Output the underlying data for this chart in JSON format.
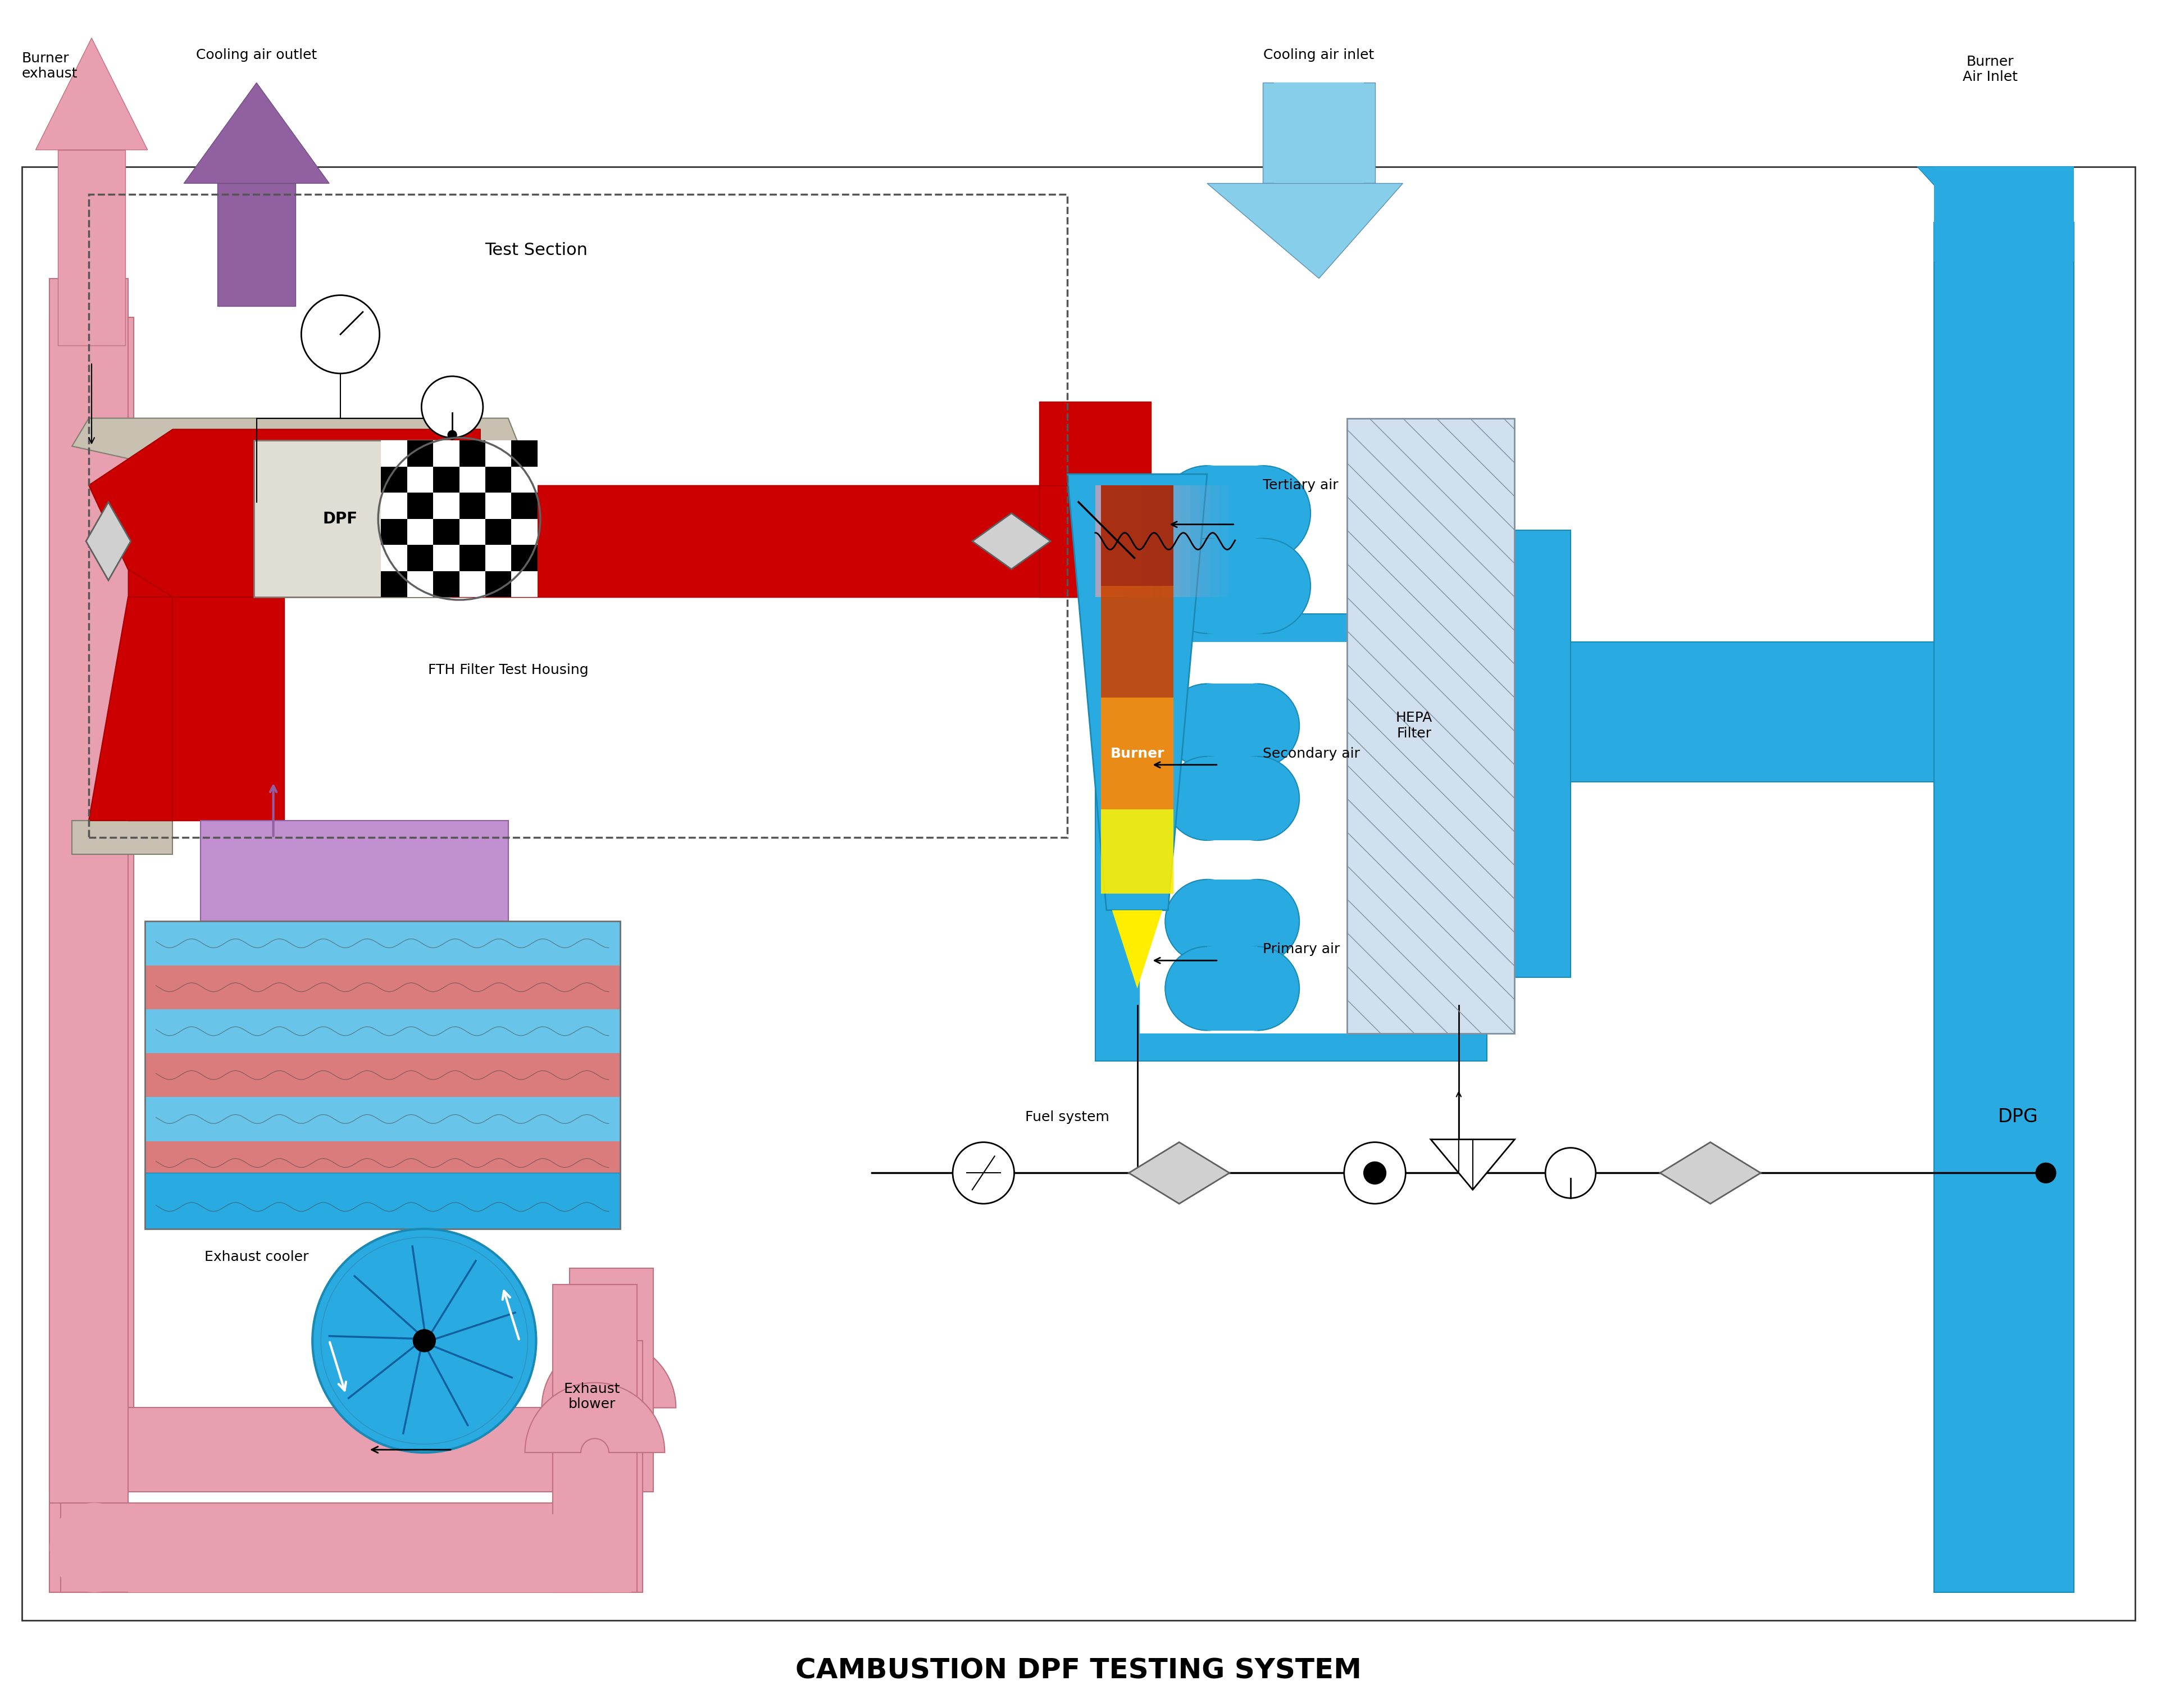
{
  "title": "CAMBUSTION DPF TESTING SYSTEM",
  "title_fontsize": 36,
  "bg_color": "#ffffff",
  "border_color": "#333333",
  "fig_width": 38.4,
  "fig_height": 30.41,
  "colors": {
    "red": "#cc0000",
    "dark_red": "#aa0000",
    "blue": "#29abe2",
    "light_blue": "#87ceeb",
    "pink": "#e8a0b0",
    "light_pink": "#f0c0cc",
    "purple": "#9060a0",
    "light_purple": "#c090d0",
    "gray": "#b0b0b0",
    "light_gray": "#d8d8d8",
    "dark_gray": "#606060",
    "orange": "#ff8800",
    "yellow": "#ffee00",
    "white": "#ffffff",
    "black": "#000000",
    "dashed_border": "#555555"
  },
  "labels": {
    "burner_exhaust": "Burner\nexhaust",
    "cooling_air_outlet": "Cooling air outlet",
    "cooling_air_inlet": "Cooling air inlet",
    "burner_air_inlet": "Burner\nAir Inlet",
    "test_section": "Test Section",
    "fth": "FTH Filter Test Housing",
    "dpf": "DPF",
    "exhaust_cooler": "Exhaust cooler",
    "tertiary_air": "Tertiary air",
    "secondary_air": "Secondary air",
    "primary_air": "Primary air",
    "burner": "Burner",
    "hepa_filter": "HEPA\nFilter",
    "fuel_system": "Fuel system",
    "exhaust_blower": "Exhaust\nblower",
    "dpg": "DPG"
  }
}
